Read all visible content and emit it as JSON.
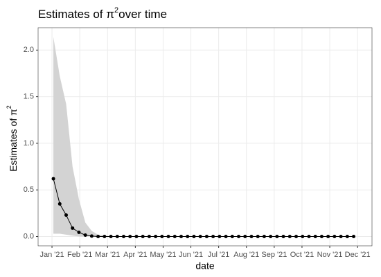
{
  "chart_data": {
    "type": "line",
    "title": {
      "text": "Estimates of π",
      "sup": "2",
      "rest": "over time"
    },
    "x_label": "date",
    "y_label": {
      "text": "Estimates of π",
      "sup": "2"
    },
    "x": [
      0.05,
      0.28,
      0.51,
      0.74,
      0.97,
      1.2,
      1.43,
      1.66,
      1.89,
      2.12,
      2.35,
      2.58,
      2.81,
      3.04,
      3.27,
      3.5,
      3.73,
      3.96,
      4.19,
      4.42,
      4.65,
      4.88,
      5.11,
      5.34,
      5.57,
      5.8,
      6.03,
      6.26,
      6.49,
      6.72,
      6.95,
      7.18,
      7.41,
      7.64,
      7.87,
      8.1,
      8.33,
      8.56,
      8.79,
      9.02,
      9.25,
      9.48,
      9.71,
      9.94,
      10.17,
      10.4,
      10.63,
      10.86
    ],
    "series": [
      {
        "color": "#000000",
        "ribbon_color": "#d3d3d3",
        "values": [
          0.62,
          0.35,
          0.23,
          0.09,
          0.045,
          0.015,
          0.005,
          0,
          0,
          0,
          0,
          0,
          0,
          0,
          0,
          0,
          0,
          0,
          0,
          0,
          0,
          0,
          0,
          0,
          0,
          0,
          0,
          0,
          0,
          0,
          0,
          0,
          0,
          0,
          0,
          0,
          0,
          0,
          0,
          0,
          0,
          0,
          0,
          0,
          0,
          0,
          0,
          0
        ],
        "ribbon_upper": [
          2.14,
          1.72,
          1.42,
          0.75,
          0.4,
          0.15,
          0.06,
          0.02,
          0.01,
          0,
          0,
          0,
          0,
          0,
          0,
          0,
          0,
          0,
          0,
          0,
          0,
          0,
          0,
          0,
          0,
          0,
          0,
          0,
          0,
          0,
          0,
          0,
          0,
          0,
          0,
          0,
          0,
          0,
          0,
          0,
          0,
          0,
          0,
          0,
          0,
          0,
          0,
          0
        ],
        "ribbon_lower": [
          0.03,
          0.03,
          0.02,
          0.01,
          0,
          0,
          0,
          0,
          0,
          0,
          0,
          0,
          0,
          0,
          0,
          0,
          0,
          0,
          0,
          0,
          0,
          0,
          0,
          0,
          0,
          0,
          0,
          0,
          0,
          0,
          0,
          0,
          0,
          0,
          0,
          0,
          0,
          0,
          0,
          0,
          0,
          0,
          0,
          0,
          0,
          0,
          0,
          0
        ]
      }
    ],
    "xlim": [
      -0.5,
      11.52
    ],
    "xticks": [
      {
        "value": 0,
        "label": "Jan '21"
      },
      {
        "value": 1,
        "label": "Feb '21"
      },
      {
        "value": 2,
        "label": "Mar '21"
      },
      {
        "value": 3,
        "label": "Apr '21"
      },
      {
        "value": 4,
        "label": "May '21"
      },
      {
        "value": 5,
        "label": "Jun '21"
      },
      {
        "value": 6,
        "label": "Jul '21"
      },
      {
        "value": 7,
        "label": "Aug '21"
      },
      {
        "value": 8,
        "label": "Sep '21"
      },
      {
        "value": 9,
        "label": "Oct '21"
      },
      {
        "value": 10,
        "label": "Nov '21"
      },
      {
        "value": 11,
        "label": "Dec '21"
      }
    ],
    "ylim": [
      -0.1,
      2.24
    ],
    "yticks": [
      {
        "value": 0,
        "label": "0.0"
      },
      {
        "value": 0.5,
        "label": "0.5"
      },
      {
        "value": 1,
        "label": "1.0"
      },
      {
        "value": 1.5,
        "label": "1.5"
      },
      {
        "value": 2,
        "label": "2.0"
      }
    ],
    "grid": true
  }
}
